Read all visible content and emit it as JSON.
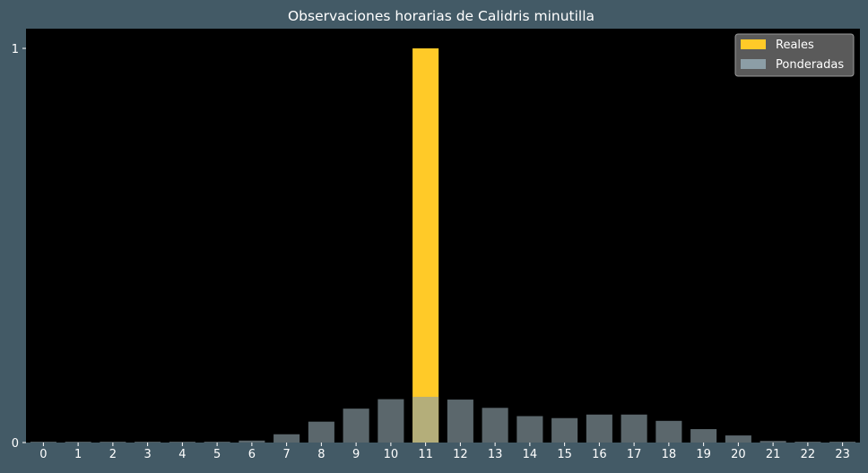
{
  "chart_data": {
    "type": "bar",
    "title": "Observaciones horarias de Calidris minutilla",
    "xlabel": "",
    "ylabel": "",
    "categories": [
      "0",
      "1",
      "2",
      "3",
      "4",
      "5",
      "6",
      "7",
      "8",
      "9",
      "10",
      "11",
      "12",
      "13",
      "14",
      "15",
      "16",
      "17",
      "18",
      "19",
      "20",
      "21",
      "22",
      "23"
    ],
    "ylim": [
      0,
      1.05
    ],
    "yticks": [
      0,
      1
    ],
    "grid": false,
    "legend_position": "top-right",
    "series": [
      {
        "name": "Reales",
        "color": "#ffca28",
        "values": [
          0,
          0,
          0,
          0,
          0,
          0,
          0,
          0,
          0,
          0,
          0,
          1,
          0,
          0,
          0,
          0,
          0,
          0,
          0,
          0,
          0,
          0,
          0,
          0
        ]
      },
      {
        "name": "Ponderadas",
        "color": "#8c9ea6",
        "values": [
          0.002,
          0.002,
          0.002,
          0.002,
          0.002,
          0.002,
          0.005,
          0.021,
          0.053,
          0.086,
          0.11,
          0.116,
          0.109,
          0.088,
          0.067,
          0.062,
          0.071,
          0.071,
          0.055,
          0.034,
          0.018,
          0.004,
          0.002,
          0.002
        ]
      }
    ]
  }
}
